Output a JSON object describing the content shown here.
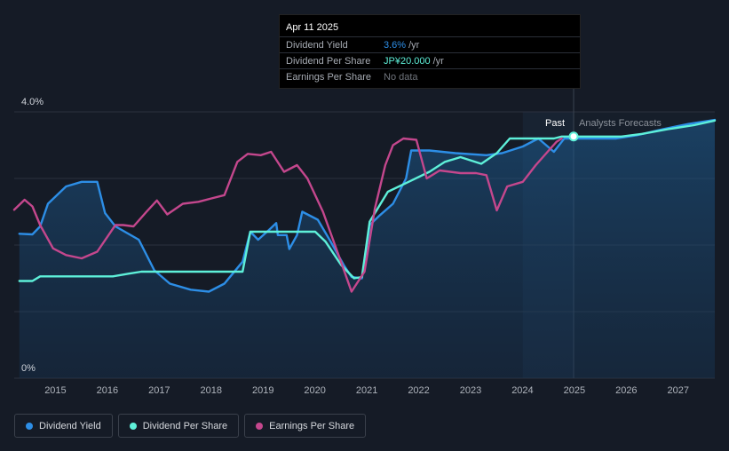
{
  "tooltip": {
    "date": "Apr 11 2025",
    "rows": [
      {
        "label": "Dividend Yield",
        "value": "3.6%",
        "unit": "/yr",
        "color": "#2d8ee6"
      },
      {
        "label": "Dividend Per Share",
        "value": "JP¥20.000",
        "unit": "/yr",
        "color": "#5ef0d9"
      },
      {
        "label": "Earnings Per Share",
        "value": "No data",
        "unit": "",
        "color": "#70757d"
      }
    ]
  },
  "labels": {
    "past": "Past",
    "forecast": "Analysts Forecasts"
  },
  "legend": [
    {
      "label": "Dividend Yield",
      "color": "#2d8ee6"
    },
    {
      "label": "Dividend Per Share",
      "color": "#5ef0d9"
    },
    {
      "label": "Earnings Per Share",
      "color": "#c4478d"
    }
  ],
  "chart_data": {
    "type": "line",
    "x_ticks": [
      "2015",
      "2016",
      "2017",
      "2018",
      "2019",
      "2020",
      "2021",
      "2022",
      "2023",
      "2024",
      "2025",
      "2026",
      "2027"
    ],
    "y_ticks": [
      "0%",
      "4.0%"
    ],
    "ylim": [
      0,
      4.0
    ],
    "xlim": [
      2014.5,
      2028
    ],
    "past_end": 2025.28,
    "forecast_shade_start": 2024.3,
    "grid": true,
    "series": [
      {
        "name": "Dividend Yield",
        "color": "#2d8ee6",
        "area": true,
        "points": [
          [
            2014.6,
            2.17
          ],
          [
            2014.85,
            2.16
          ],
          [
            2015.0,
            2.28
          ],
          [
            2015.15,
            2.62
          ],
          [
            2015.5,
            2.88
          ],
          [
            2015.8,
            2.95
          ],
          [
            2016.1,
            2.95
          ],
          [
            2016.25,
            2.48
          ],
          [
            2016.45,
            2.28
          ],
          [
            2016.9,
            2.08
          ],
          [
            2017.2,
            1.62
          ],
          [
            2017.5,
            1.42
          ],
          [
            2017.9,
            1.33
          ],
          [
            2018.25,
            1.3
          ],
          [
            2018.55,
            1.42
          ],
          [
            2018.9,
            1.75
          ],
          [
            2019.05,
            2.2
          ],
          [
            2019.2,
            2.08
          ],
          [
            2019.4,
            2.22
          ],
          [
            2019.55,
            2.33
          ],
          [
            2019.58,
            2.15
          ],
          [
            2019.75,
            2.15
          ],
          [
            2019.8,
            1.94
          ],
          [
            2019.95,
            2.15
          ],
          [
            2020.05,
            2.5
          ],
          [
            2020.35,
            2.38
          ],
          [
            2020.6,
            2.05
          ],
          [
            2020.85,
            1.7
          ],
          [
            2021.0,
            1.52
          ],
          [
            2021.2,
            1.5
          ],
          [
            2021.35,
            2.3
          ],
          [
            2021.55,
            2.45
          ],
          [
            2021.8,
            2.62
          ],
          [
            2022.05,
            3.0
          ],
          [
            2022.15,
            3.42
          ],
          [
            2022.5,
            3.42
          ],
          [
            2023.0,
            3.38
          ],
          [
            2023.6,
            3.35
          ],
          [
            2023.9,
            3.38
          ],
          [
            2024.3,
            3.48
          ],
          [
            2024.6,
            3.6
          ],
          [
            2024.9,
            3.4
          ],
          [
            2025.1,
            3.6
          ],
          [
            2025.28,
            3.6
          ],
          [
            2025.6,
            3.6
          ],
          [
            2026.1,
            3.6
          ],
          [
            2026.5,
            3.65
          ],
          [
            2027.0,
            3.74
          ],
          [
            2027.5,
            3.82
          ],
          [
            2028.0,
            3.88
          ]
        ]
      },
      {
        "name": "Dividend Per Share",
        "color": "#5ef0d9",
        "area": false,
        "points": [
          [
            2014.6,
            1.46
          ],
          [
            2014.85,
            1.46
          ],
          [
            2015.0,
            1.53
          ],
          [
            2016.4,
            1.53
          ],
          [
            2016.7,
            1.57
          ],
          [
            2016.95,
            1.6
          ],
          [
            2018.9,
            1.6
          ],
          [
            2019.05,
            2.2
          ],
          [
            2019.2,
            2.2
          ],
          [
            2020.3,
            2.2
          ],
          [
            2020.5,
            2.05
          ],
          [
            2020.8,
            1.7
          ],
          [
            2021.05,
            1.5
          ],
          [
            2021.2,
            1.52
          ],
          [
            2021.35,
            2.35
          ],
          [
            2021.7,
            2.8
          ],
          [
            2022.1,
            2.95
          ],
          [
            2022.5,
            3.1
          ],
          [
            2022.8,
            3.25
          ],
          [
            2023.1,
            3.32
          ],
          [
            2023.5,
            3.22
          ],
          [
            2023.8,
            3.38
          ],
          [
            2024.05,
            3.6
          ],
          [
            2024.5,
            3.6
          ],
          [
            2024.9,
            3.6
          ],
          [
            2025.05,
            3.63
          ],
          [
            2025.28,
            3.63
          ],
          [
            2026.2,
            3.63
          ],
          [
            2026.6,
            3.67
          ],
          [
            2027.1,
            3.74
          ],
          [
            2027.6,
            3.8
          ],
          [
            2028.0,
            3.87
          ]
        ]
      },
      {
        "name": "Earnings Per Share",
        "color": "#c4478d",
        "area": false,
        "points": [
          [
            2014.5,
            2.53
          ],
          [
            2014.7,
            2.68
          ],
          [
            2014.85,
            2.58
          ],
          [
            2015.0,
            2.3
          ],
          [
            2015.25,
            1.95
          ],
          [
            2015.5,
            1.85
          ],
          [
            2015.8,
            1.8
          ],
          [
            2016.1,
            1.9
          ],
          [
            2016.45,
            2.3
          ],
          [
            2016.6,
            2.3
          ],
          [
            2016.8,
            2.28
          ],
          [
            2017.05,
            2.5
          ],
          [
            2017.25,
            2.67
          ],
          [
            2017.45,
            2.46
          ],
          [
            2017.75,
            2.62
          ],
          [
            2018.05,
            2.65
          ],
          [
            2018.3,
            2.7
          ],
          [
            2018.55,
            2.75
          ],
          [
            2018.8,
            3.25
          ],
          [
            2019.0,
            3.37
          ],
          [
            2019.25,
            3.35
          ],
          [
            2019.45,
            3.4
          ],
          [
            2019.7,
            3.1
          ],
          [
            2019.95,
            3.2
          ],
          [
            2020.15,
            3.0
          ],
          [
            2020.45,
            2.5
          ],
          [
            2020.75,
            1.85
          ],
          [
            2021.0,
            1.3
          ],
          [
            2021.25,
            1.6
          ],
          [
            2021.45,
            2.55
          ],
          [
            2021.65,
            3.2
          ],
          [
            2021.8,
            3.5
          ],
          [
            2022.0,
            3.6
          ],
          [
            2022.25,
            3.58
          ],
          [
            2022.45,
            3.0
          ],
          [
            2022.7,
            3.12
          ],
          [
            2023.1,
            3.08
          ],
          [
            2023.4,
            3.08
          ],
          [
            2023.6,
            3.05
          ],
          [
            2023.8,
            2.52
          ],
          [
            2024.0,
            2.88
          ],
          [
            2024.3,
            2.95
          ],
          [
            2024.55,
            3.2
          ],
          [
            2024.8,
            3.42
          ],
          [
            2024.95,
            3.55
          ],
          [
            2025.05,
            3.6
          ]
        ]
      }
    ]
  }
}
